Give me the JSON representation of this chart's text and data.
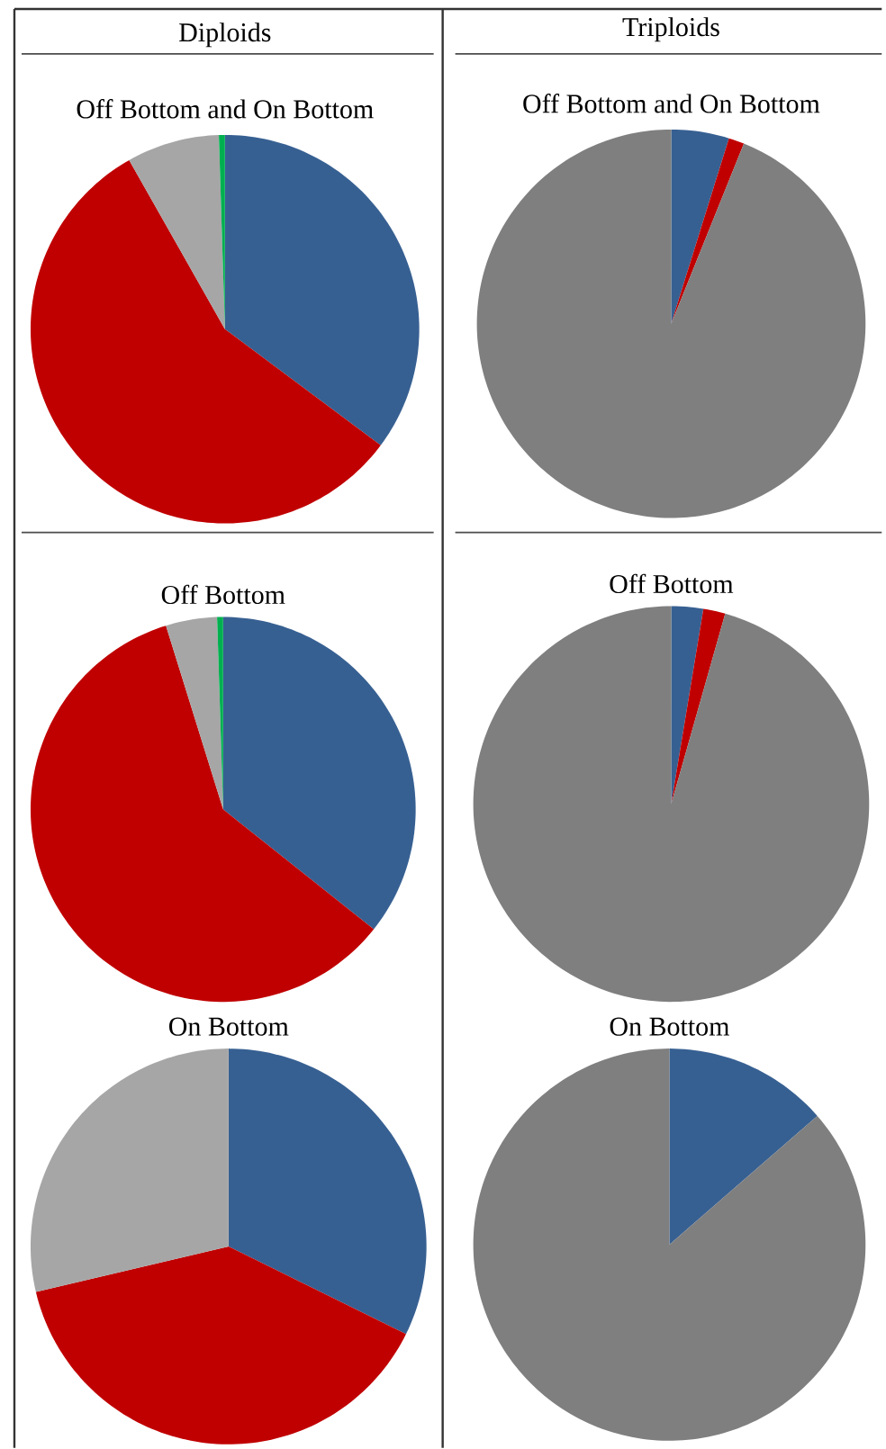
{
  "chart_data": [
    {
      "type": "pie",
      "title": "Diploids",
      "subtitle": "Off Bottom and On Bottom",
      "categories": [
        null,
        null,
        null,
        null
      ],
      "values": [
        35.2,
        56.6,
        7.7,
        0.5
      ],
      "colors": [
        "#376092",
        "#c00000",
        "#a6a6a6",
        "#00b050"
      ]
    },
    {
      "type": "pie",
      "title": "Triploids",
      "subtitle": "Off Bottom and On Bottom",
      "categories": [
        null,
        null,
        null
      ],
      "values": [
        4.8,
        1.3,
        93.9
      ],
      "colors": [
        "#376092",
        "#c00000",
        "#7f7f7f"
      ]
    },
    {
      "type": "pie",
      "title": "Off Bottom",
      "categories": [
        null,
        null,
        null,
        null
      ],
      "values": [
        35.7,
        59.5,
        4.3,
        0.5
      ],
      "colors": [
        "#376092",
        "#c00000",
        "#a6a6a6",
        "#00b050"
      ]
    },
    {
      "type": "pie",
      "title": "Off Bottom",
      "categories": [
        null,
        null,
        null
      ],
      "values": [
        2.6,
        1.8,
        95.6
      ],
      "colors": [
        "#376092",
        "#c00000",
        "#7f7f7f"
      ]
    },
    {
      "type": "pie",
      "title": "On Bottom",
      "categories": [
        null,
        null,
        null
      ],
      "values": [
        32.3,
        39.0,
        28.7
      ],
      "colors": [
        "#376092",
        "#c00000",
        "#a6a6a6"
      ]
    },
    {
      "type": "pie",
      "title": "On Bottom",
      "categories": [
        null,
        null
      ],
      "values": [
        13.6,
        86.4
      ],
      "colors": [
        "#376092",
        "#7f7f7f"
      ]
    }
  ]
}
